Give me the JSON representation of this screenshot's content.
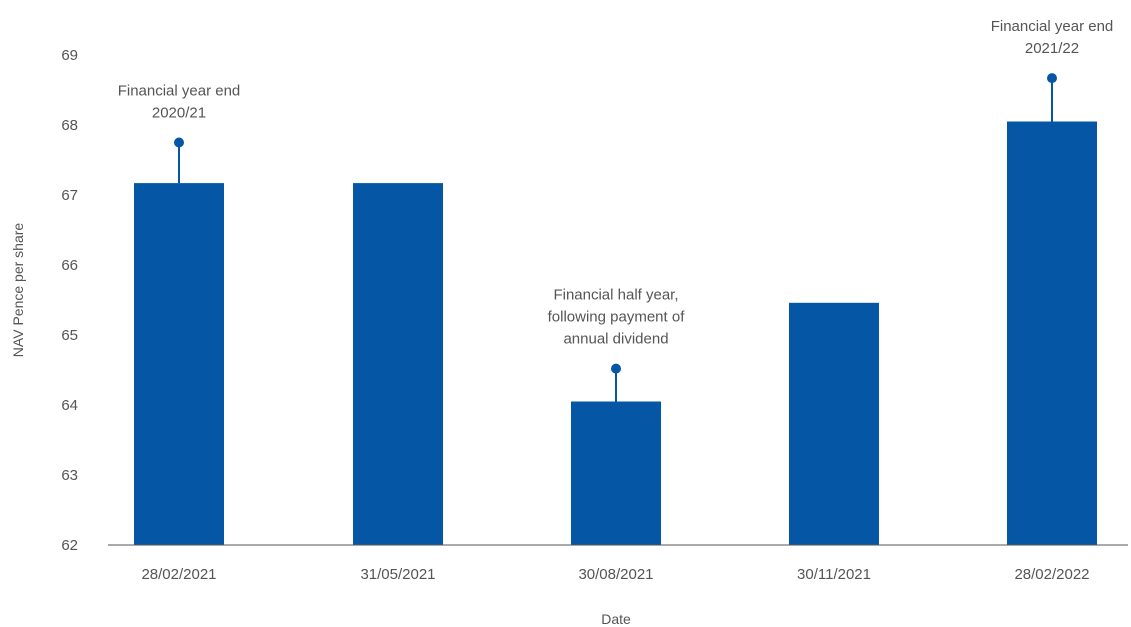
{
  "chart_data": {
    "type": "bar",
    "title": "",
    "xlabel": "Date",
    "ylabel": "NAV Pence per share",
    "ylim": [
      62,
      69
    ],
    "yticks": [
      62,
      63,
      64,
      65,
      66,
      67,
      68,
      69
    ],
    "grid": false,
    "legend": "none",
    "categories": [
      "28/02/2021",
      "31/05/2021",
      "30/08/2021",
      "30/11/2021",
      "28/02/2022"
    ],
    "series": [
      {
        "values": [
          67.17,
          67.17,
          64.05,
          65.46,
          68.05
        ],
        "color": "#0557a5"
      }
    ],
    "annotations": [
      {
        "category": "28/02/2021",
        "marker_value": 67.75,
        "lines": [
          "Financial year end",
          "2020/21"
        ]
      },
      {
        "category": "30/08/2021",
        "marker_value": 64.52,
        "lines": [
          "Financial half year,",
          "following payment of",
          "annual dividend"
        ]
      },
      {
        "category": "28/02/2022",
        "marker_value": 68.67,
        "lines": [
          "Financial year end",
          "2021/22"
        ]
      }
    ]
  }
}
